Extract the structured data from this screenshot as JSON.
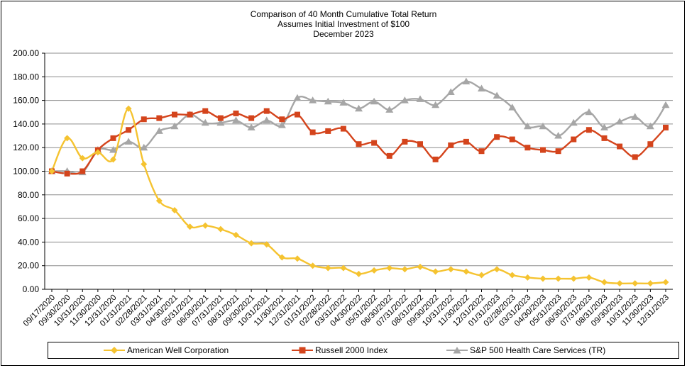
{
  "colors": {
    "american_well": "#f5c330",
    "russell_2000": "#d4441c",
    "sp500_hcs": "#a6a6a6",
    "grid": "#8c8c8c",
    "axis": "#000000"
  },
  "chart_data": {
    "type": "line",
    "title": "Comparison of 40 Month Cumulative Total Return",
    "subtitle_lines": [
      "Assumes Initial Investment of $100",
      "December 2023"
    ],
    "xlabel": "",
    "ylabel": "",
    "ylim": [
      0,
      200
    ],
    "yticks": [
      "0.00",
      "20.00",
      "40.00",
      "60.00",
      "80.00",
      "100.00",
      "120.00",
      "140.00",
      "160.00",
      "180.00",
      "200.00"
    ],
    "grid": true,
    "legend_position": "bottom",
    "categories": [
      "09/17/2020",
      "09/30/2020",
      "10/31/2020",
      "11/30/2020",
      "12/31/2020",
      "01/31/2021",
      "02/28/2021",
      "03/31/2021",
      "04/30/2021",
      "05/31/2021",
      "06/30/2021",
      "07/31/2021",
      "08/31/2021",
      "09/30/2021",
      "10/31/2021",
      "11/30/2021",
      "12/31/2021",
      "01/31/2022",
      "02/28/2022",
      "03/31/2022",
      "04/30/2022",
      "05/31/2022",
      "06/30/2022",
      "07/31/2022",
      "08/31/2022",
      "09/30/2022",
      "10/31/2022",
      "11/30/2022",
      "12/31/2022",
      "01/31/2023",
      "02/28/2023",
      "03/31/2023",
      "04/30/2023",
      "05/31/2023",
      "06/30/2023",
      "07/31/2023",
      "08/31/2023",
      "09/30/2023",
      "10/31/2023",
      "11/30/2023",
      "12/31/2023"
    ],
    "series": [
      {
        "name": "American Well Corporation",
        "marker": "diamond",
        "color_key": "american_well",
        "values": [
          100,
          128,
          111,
          116,
          110,
          153,
          106,
          75,
          67,
          53,
          54,
          51,
          46,
          39,
          38,
          27,
          26,
          20,
          18,
          18,
          13,
          16,
          18,
          17,
          19,
          15,
          17,
          15,
          12,
          17,
          12,
          10,
          9,
          9,
          9,
          10,
          6,
          5,
          5,
          5,
          6
        ]
      },
      {
        "name": "Russell 2000 Index",
        "marker": "square",
        "color_key": "russell_2000",
        "values": [
          100,
          98,
          100,
          118,
          128,
          135,
          144,
          145,
          148,
          148,
          151,
          145,
          149,
          145,
          151,
          144,
          148,
          133,
          134,
          136,
          123,
          124,
          113,
          125,
          123,
          110,
          122,
          125,
          117,
          129,
          127,
          120,
          118,
          117,
          127,
          135,
          128,
          121,
          112,
          123,
          137
        ]
      },
      {
        "name": "S&P 500 Health Care Services (TR)",
        "marker": "triangle",
        "color_key": "sp500_hcs",
        "values": [
          100,
          100,
          99,
          118,
          118,
          125,
          120,
          134,
          138,
          148,
          141,
          141,
          143,
          137,
          143,
          139,
          162,
          160,
          159,
          158,
          153,
          159,
          152,
          160,
          161,
          156,
          167,
          176,
          170,
          164,
          154,
          138,
          138,
          130,
          141,
          150,
          137,
          142,
          146,
          138,
          156
        ]
      }
    ]
  }
}
